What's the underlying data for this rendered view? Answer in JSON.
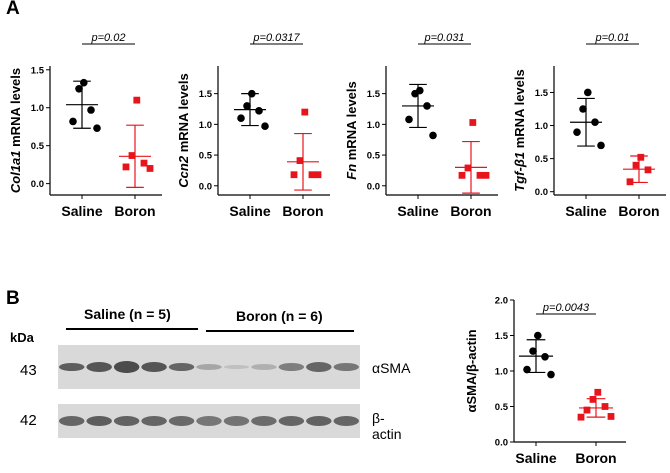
{
  "panels": {
    "a_label": "A",
    "b_label": "B"
  },
  "mrna_charts": [
    {
      "gene": "Col1a1",
      "ylabel_rest": " mRNA levels",
      "pvalue": "p=0.02",
      "yticks": [
        "0.0",
        "0.5",
        "1.0",
        "1.5"
      ],
      "ylim": [
        -0.15,
        1.55
      ],
      "saline_mean": 1.04,
      "saline_sd": 0.31,
      "boron_mean": 0.36,
      "boron_sd": 0.41,
      "saline_points": [
        1.33,
        1.25,
        0.97,
        0.82,
        0.73
      ],
      "boron_points": [
        1.1,
        0.37,
        0.27,
        0.22,
        0.2
      ]
    },
    {
      "gene": "Ccn2",
      "ylabel_rest": " mRNA levels",
      "pvalue": "p=0.0317",
      "yticks": [
        "0.0",
        "0.5",
        "1.0",
        "1.5"
      ],
      "ylim": [
        -0.15,
        1.95
      ],
      "saline_mean": 1.24,
      "saline_sd": 0.26,
      "boron_mean": 0.39,
      "boron_sd": 0.46,
      "saline_points": [
        1.5,
        1.3,
        1.22,
        1.1,
        0.97
      ],
      "boron_points": [
        1.2,
        0.41,
        0.18,
        0.18,
        0.18
      ]
    },
    {
      "gene": "Fn",
      "ylabel_rest": " mRNA levels",
      "pvalue": "p=0.031",
      "yticks": [
        "0.0",
        "0.5",
        "1.0",
        "1.5"
      ],
      "ylim": [
        -0.15,
        1.95
      ],
      "saline_mean": 1.3,
      "saline_sd": 0.35,
      "boron_mean": 0.3,
      "boron_sd": 0.42,
      "saline_points": [
        1.55,
        1.5,
        1.3,
        1.08,
        0.82
      ],
      "boron_points": [
        1.03,
        0.29,
        0.17,
        0.17,
        0.17
      ]
    },
    {
      "gene": "Tgf-β1",
      "ylabel_rest": " mRNA levels",
      "pvalue": "p=0.01",
      "yticks": [
        "0.0",
        "0.5",
        "1.0",
        "1.5"
      ],
      "ylim": [
        -0.05,
        1.9
      ],
      "saline_mean": 1.05,
      "saline_sd": 0.36,
      "boron_mean": 0.34,
      "boron_sd": 0.2,
      "saline_points": [
        1.5,
        1.25,
        1.05,
        0.9,
        0.7
      ],
      "boron_points": [
        0.52,
        0.4,
        0.33,
        0.15
      ]
    }
  ],
  "xcategories": [
    "Saline",
    "Boron"
  ],
  "western": {
    "kda_label": "kDa",
    "saline_header": "Saline (n = 5)",
    "boron_header": "Boron (n = 6)",
    "band1_mw": "43",
    "band2_mw": "42",
    "band1_label": "αSMA",
    "band2_label": "β-actin"
  },
  "sma_chart": {
    "ylabel": "αSMA/β-actin",
    "pvalue": "p=0.0043",
    "yticks": [
      "0.0",
      "0.5",
      "1.0",
      "1.5",
      "2.0"
    ],
    "ylim": [
      0,
      2.0
    ],
    "saline_mean": 1.21,
    "saline_sd": 0.23,
    "boron_mean": 0.48,
    "boron_sd": 0.13,
    "saline_points": [
      1.5,
      1.28,
      1.2,
      1.02,
      0.95
    ],
    "boron_points": [
      0.7,
      0.6,
      0.5,
      0.45,
      0.36,
      0.35
    ]
  },
  "chart_data": [
    {
      "type": "scatter",
      "ylabel": "Col1a1 mRNA levels",
      "categories": [
        "Saline",
        "Boron"
      ],
      "series": [
        {
          "name": "Saline",
          "values": [
            1.33,
            1.25,
            0.97,
            0.82,
            0.73
          ]
        },
        {
          "name": "Boron",
          "values": [
            1.1,
            0.37,
            0.27,
            0.22,
            0.2
          ]
        }
      ],
      "ylim": [
        -0.15,
        1.55
      ],
      "annotation": "p=0.02"
    },
    {
      "type": "scatter",
      "ylabel": "Ccn2 mRNA levels",
      "categories": [
        "Saline",
        "Boron"
      ],
      "series": [
        {
          "name": "Saline",
          "values": [
            1.5,
            1.3,
            1.22,
            1.1,
            0.97
          ]
        },
        {
          "name": "Boron",
          "values": [
            1.2,
            0.41,
            0.18,
            0.18,
            0.18
          ]
        }
      ],
      "ylim": [
        -0.15,
        1.95
      ],
      "annotation": "p=0.0317"
    },
    {
      "type": "scatter",
      "ylabel": "Fn mRNA levels",
      "categories": [
        "Saline",
        "Boron"
      ],
      "series": [
        {
          "name": "Saline",
          "values": [
            1.55,
            1.5,
            1.3,
            1.08,
            0.82
          ]
        },
        {
          "name": "Boron",
          "values": [
            1.03,
            0.29,
            0.17,
            0.17,
            0.17
          ]
        }
      ],
      "ylim": [
        -0.15,
        1.95
      ],
      "annotation": "p=0.031"
    },
    {
      "type": "scatter",
      "ylabel": "Tgf-β1 mRNA levels",
      "categories": [
        "Saline",
        "Boron"
      ],
      "series": [
        {
          "name": "Saline",
          "values": [
            1.5,
            1.25,
            1.05,
            0.9,
            0.7
          ]
        },
        {
          "name": "Boron",
          "values": [
            0.52,
            0.4,
            0.33,
            0.15
          ]
        }
      ],
      "ylim": [
        -0.05,
        1.9
      ],
      "annotation": "p=0.01"
    },
    {
      "type": "scatter",
      "ylabel": "αSMA/β-actin",
      "categories": [
        "Saline",
        "Boron"
      ],
      "series": [
        {
          "name": "Saline",
          "values": [
            1.5,
            1.28,
            1.2,
            1.02,
            0.95
          ]
        },
        {
          "name": "Boron",
          "values": [
            0.7,
            0.6,
            0.5,
            0.45,
            0.36,
            0.35
          ]
        }
      ],
      "ylim": [
        0,
        2.0
      ],
      "annotation": "p=0.0043"
    }
  ]
}
